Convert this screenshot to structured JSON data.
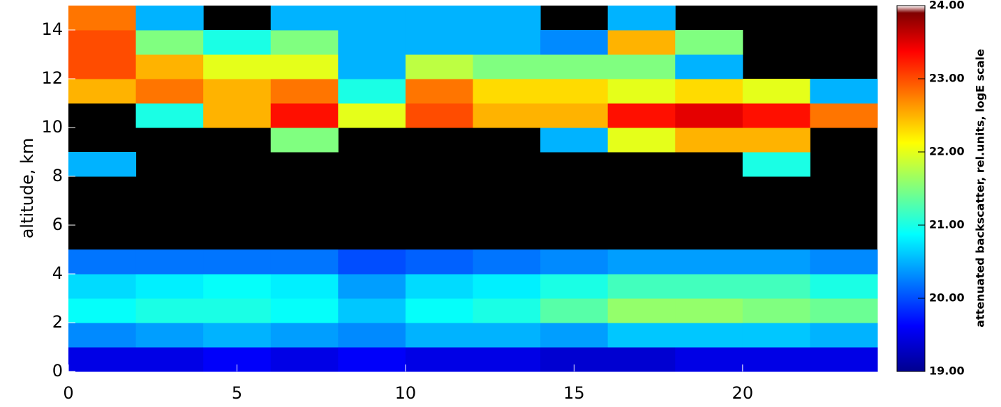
{
  "chart_data": {
    "type": "heatmap",
    "ylabel": "altitude, km",
    "colorbar_label": "attenuated backscatter, rel.units, logE scale",
    "xlim": [
      0,
      24
    ],
    "xticks": [
      0,
      5,
      10,
      15,
      20
    ],
    "ylim": [
      0,
      15
    ],
    "yticks": [
      0,
      2,
      4,
      6,
      8,
      10,
      12,
      14
    ],
    "clim": [
      19,
      24
    ],
    "cticks": [
      {
        "value": 19,
        "label": "19.00"
      },
      {
        "value": 20,
        "label": "20.00"
      },
      {
        "value": 21,
        "label": "21.00"
      },
      {
        "value": 22,
        "label": "22.00"
      },
      {
        "value": 23,
        "label": "23.00"
      },
      {
        "value": 24,
        "label": "24.00"
      }
    ],
    "colormap": "jet",
    "xbins": [
      0,
      2,
      4,
      6,
      8,
      10,
      12,
      14,
      16,
      18,
      20,
      22,
      24
    ],
    "ybins": [
      0,
      1,
      2,
      3,
      4,
      5,
      6,
      7,
      8,
      9,
      10,
      11,
      12,
      13,
      14,
      15
    ],
    "values": [
      [
        19.5,
        19.5,
        19.6,
        19.5,
        19.6,
        19.5,
        19.5,
        19.4,
        19.4,
        19.5,
        19.5,
        19.5
      ],
      [
        20.3,
        20.4,
        20.5,
        20.4,
        20.3,
        20.5,
        20.5,
        20.4,
        20.6,
        20.6,
        20.6,
        20.5
      ],
      [
        20.9,
        21.0,
        21.0,
        20.9,
        20.6,
        20.9,
        21.0,
        21.3,
        21.6,
        21.6,
        21.5,
        21.4
      ],
      [
        20.7,
        20.8,
        20.9,
        20.8,
        20.4,
        20.7,
        20.8,
        21.0,
        21.2,
        21.2,
        21.2,
        21.0
      ],
      [
        20.2,
        20.2,
        20.2,
        20.2,
        20.0,
        20.1,
        20.2,
        20.3,
        20.4,
        20.4,
        20.4,
        20.3
      ],
      [
        null,
        null,
        null,
        null,
        null,
        null,
        null,
        null,
        null,
        null,
        null,
        null
      ],
      [
        null,
        null,
        null,
        null,
        null,
        null,
        null,
        null,
        null,
        null,
        null,
        null
      ],
      [
        null,
        null,
        null,
        null,
        null,
        null,
        null,
        null,
        null,
        null,
        null,
        null
      ],
      [
        20.5,
        null,
        null,
        null,
        null,
        null,
        null,
        null,
        null,
        null,
        21.0,
        null
      ],
      [
        null,
        null,
        null,
        21.5,
        null,
        null,
        null,
        20.5,
        22.0,
        22.5,
        22.5,
        null
      ],
      [
        null,
        21.0,
        22.5,
        23.3,
        22.0,
        23.0,
        22.5,
        22.5,
        23.3,
        23.5,
        23.3,
        22.8
      ],
      [
        22.5,
        22.8,
        22.5,
        22.8,
        21.0,
        22.8,
        22.3,
        22.3,
        22.0,
        22.3,
        22.0,
        20.5
      ],
      [
        23.0,
        22.5,
        22.0,
        22.0,
        20.5,
        21.8,
        21.5,
        21.5,
        21.5,
        20.5,
        null,
        null
      ],
      [
        23.0,
        21.5,
        21.0,
        21.5,
        20.5,
        20.5,
        20.5,
        20.3,
        22.5,
        21.5,
        null,
        null
      ],
      [
        22.8,
        20.5,
        null,
        20.5,
        20.5,
        20.5,
        20.5,
        null,
        20.5,
        null,
        null,
        null
      ]
    ]
  }
}
